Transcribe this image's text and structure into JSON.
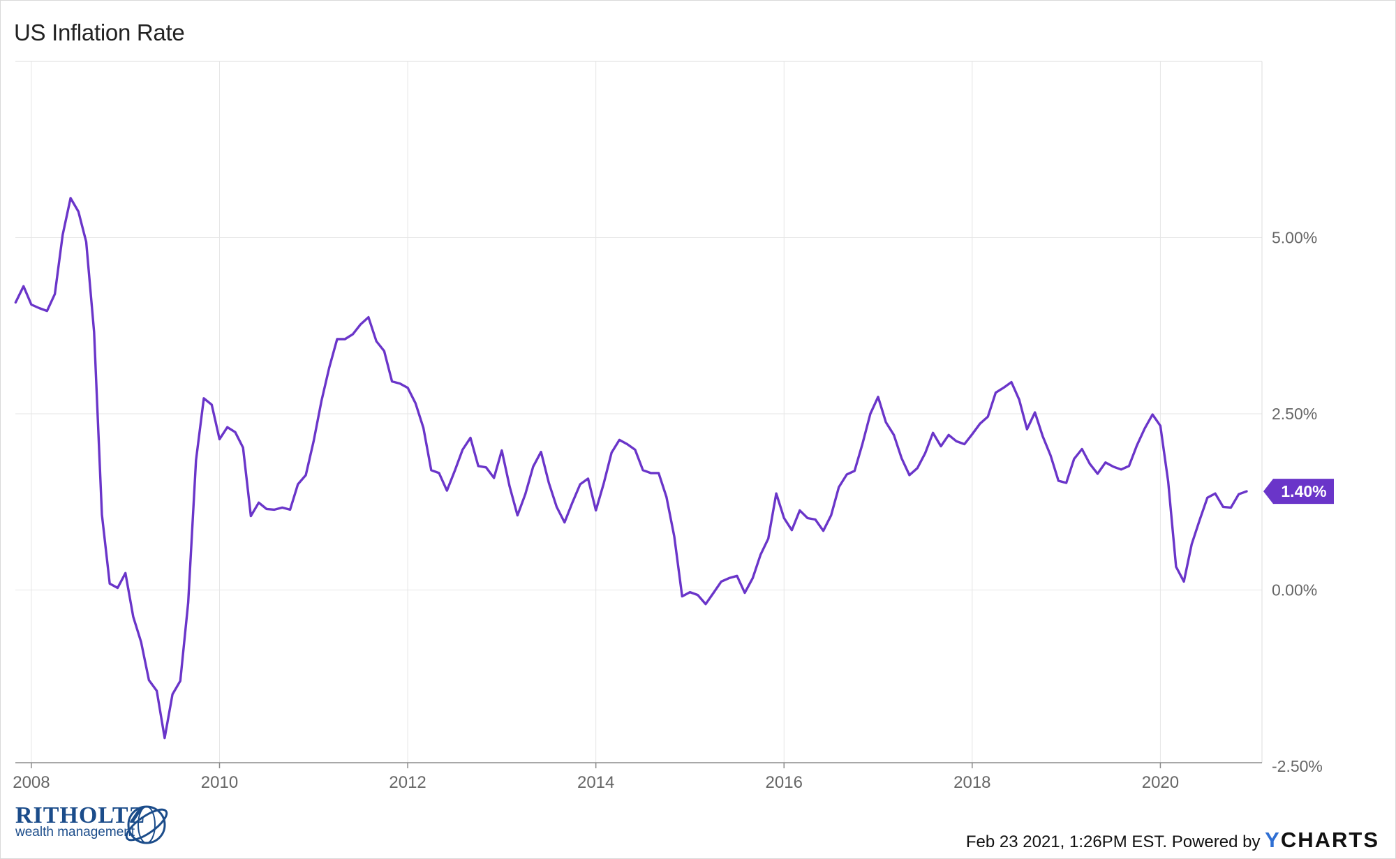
{
  "chart_data": {
    "type": "line",
    "title": "US Inflation Rate",
    "xlabel": "",
    "ylabel": "",
    "xlim": [
      2007.83,
      2021.08
    ],
    "ylim": [
      -2.45,
      7.5
    ],
    "x_ticks": [
      2008,
      2010,
      2012,
      2014,
      2016,
      2018,
      2020
    ],
    "x_tick_labels": [
      "2008",
      "2010",
      "2012",
      "2014",
      "2016",
      "2018",
      "2020"
    ],
    "y_ticks": [
      5.0,
      2.5,
      0.0,
      -2.5
    ],
    "y_tick_labels": [
      "5.00%",
      "2.50%",
      "0.00%",
      "-2.50%"
    ],
    "grid": true,
    "last_value_label": "1.40%",
    "colors": {
      "line": "#6a35c9",
      "grid": "#e6e6e6",
      "tick_text": "#666666",
      "axis": "#8c8c8c"
    },
    "series": [
      {
        "values": [
          [
            2007.833,
            4.08
          ],
          [
            2007.917,
            4.31
          ],
          [
            2008.0,
            4.05
          ],
          [
            2008.083,
            4.0
          ],
          [
            2008.167,
            3.96
          ],
          [
            2008.25,
            4.2
          ],
          [
            2008.333,
            5.04
          ],
          [
            2008.417,
            5.56
          ],
          [
            2008.5,
            5.37
          ],
          [
            2008.583,
            4.94
          ],
          [
            2008.667,
            3.66
          ],
          [
            2008.75,
            1.07
          ],
          [
            2008.833,
            0.09
          ],
          [
            2008.917,
            0.03
          ],
          [
            2009.0,
            0.24
          ],
          [
            2009.083,
            -0.38
          ],
          [
            2009.167,
            -0.74
          ],
          [
            2009.25,
            -1.28
          ],
          [
            2009.333,
            -1.43
          ],
          [
            2009.417,
            -2.1
          ],
          [
            2009.5,
            -1.48
          ],
          [
            2009.583,
            -1.29
          ],
          [
            2009.667,
            -0.18
          ],
          [
            2009.75,
            1.84
          ],
          [
            2009.833,
            2.72
          ],
          [
            2009.917,
            2.63
          ],
          [
            2010.0,
            2.14
          ],
          [
            2010.083,
            2.31
          ],
          [
            2010.167,
            2.24
          ],
          [
            2010.25,
            2.02
          ],
          [
            2010.333,
            1.05
          ],
          [
            2010.417,
            1.24
          ],
          [
            2010.5,
            1.15
          ],
          [
            2010.583,
            1.14
          ],
          [
            2010.667,
            1.17
          ],
          [
            2010.75,
            1.14
          ],
          [
            2010.833,
            1.5
          ],
          [
            2010.917,
            1.63
          ],
          [
            2011.0,
            2.11
          ],
          [
            2011.083,
            2.68
          ],
          [
            2011.167,
            3.16
          ],
          [
            2011.25,
            3.56
          ],
          [
            2011.333,
            3.56
          ],
          [
            2011.417,
            3.63
          ],
          [
            2011.5,
            3.77
          ],
          [
            2011.583,
            3.87
          ],
          [
            2011.667,
            3.53
          ],
          [
            2011.75,
            3.39
          ],
          [
            2011.833,
            2.96
          ],
          [
            2011.917,
            2.93
          ],
          [
            2012.0,
            2.87
          ],
          [
            2012.083,
            2.65
          ],
          [
            2012.167,
            2.3
          ],
          [
            2012.25,
            1.7
          ],
          [
            2012.333,
            1.66
          ],
          [
            2012.417,
            1.41
          ],
          [
            2012.5,
            1.69
          ],
          [
            2012.583,
            1.99
          ],
          [
            2012.667,
            2.16
          ],
          [
            2012.75,
            1.76
          ],
          [
            2012.833,
            1.74
          ],
          [
            2012.917,
            1.59
          ],
          [
            2013.0,
            1.98
          ],
          [
            2013.083,
            1.47
          ],
          [
            2013.167,
            1.06
          ],
          [
            2013.25,
            1.36
          ],
          [
            2013.333,
            1.75
          ],
          [
            2013.417,
            1.96
          ],
          [
            2013.5,
            1.52
          ],
          [
            2013.583,
            1.18
          ],
          [
            2013.667,
            0.96
          ],
          [
            2013.75,
            1.24
          ],
          [
            2013.833,
            1.5
          ],
          [
            2013.917,
            1.58
          ],
          [
            2014.0,
            1.13
          ],
          [
            2014.083,
            1.51
          ],
          [
            2014.167,
            1.95
          ],
          [
            2014.25,
            2.13
          ],
          [
            2014.333,
            2.07
          ],
          [
            2014.417,
            1.99
          ],
          [
            2014.5,
            1.7
          ],
          [
            2014.583,
            1.66
          ],
          [
            2014.667,
            1.66
          ],
          [
            2014.75,
            1.32
          ],
          [
            2014.833,
            0.76
          ],
          [
            2014.917,
            -0.09
          ],
          [
            2015.0,
            -0.03
          ],
          [
            2015.083,
            -0.07
          ],
          [
            2015.167,
            -0.2
          ],
          [
            2015.25,
            -0.04
          ],
          [
            2015.333,
            0.12
          ],
          [
            2015.417,
            0.17
          ],
          [
            2015.5,
            0.2
          ],
          [
            2015.583,
            -0.04
          ],
          [
            2015.667,
            0.17
          ],
          [
            2015.75,
            0.5
          ],
          [
            2015.833,
            0.73
          ],
          [
            2015.917,
            1.37
          ],
          [
            2016.0,
            1.02
          ],
          [
            2016.083,
            0.85
          ],
          [
            2016.167,
            1.13
          ],
          [
            2016.25,
            1.02
          ],
          [
            2016.333,
            1.0
          ],
          [
            2016.417,
            0.84
          ],
          [
            2016.5,
            1.06
          ],
          [
            2016.583,
            1.46
          ],
          [
            2016.667,
            1.64
          ],
          [
            2016.75,
            1.69
          ],
          [
            2016.833,
            2.07
          ],
          [
            2016.917,
            2.5
          ],
          [
            2017.0,
            2.74
          ],
          [
            2017.083,
            2.38
          ],
          [
            2017.167,
            2.2
          ],
          [
            2017.25,
            1.87
          ],
          [
            2017.333,
            1.63
          ],
          [
            2017.417,
            1.73
          ],
          [
            2017.5,
            1.94
          ],
          [
            2017.583,
            2.23
          ],
          [
            2017.667,
            2.04
          ],
          [
            2017.75,
            2.2
          ],
          [
            2017.833,
            2.11
          ],
          [
            2017.917,
            2.07
          ],
          [
            2018.0,
            2.21
          ],
          [
            2018.083,
            2.36
          ],
          [
            2018.167,
            2.46
          ],
          [
            2018.25,
            2.8
          ],
          [
            2018.333,
            2.87
          ],
          [
            2018.417,
            2.95
          ],
          [
            2018.5,
            2.7
          ],
          [
            2018.583,
            2.28
          ],
          [
            2018.667,
            2.52
          ],
          [
            2018.75,
            2.18
          ],
          [
            2018.833,
            1.91
          ],
          [
            2018.917,
            1.55
          ],
          [
            2019.0,
            1.52
          ],
          [
            2019.083,
            1.86
          ],
          [
            2019.167,
            2.0
          ],
          [
            2019.25,
            1.79
          ],
          [
            2019.333,
            1.65
          ],
          [
            2019.417,
            1.81
          ],
          [
            2019.5,
            1.75
          ],
          [
            2019.583,
            1.71
          ],
          [
            2019.667,
            1.76
          ],
          [
            2019.75,
            2.05
          ],
          [
            2019.833,
            2.29
          ],
          [
            2019.917,
            2.49
          ],
          [
            2020.0,
            2.33
          ],
          [
            2020.083,
            1.54
          ],
          [
            2020.167,
            0.33
          ],
          [
            2020.25,
            0.12
          ],
          [
            2020.333,
            0.65
          ],
          [
            2020.417,
            0.99
          ],
          [
            2020.5,
            1.31
          ],
          [
            2020.583,
            1.37
          ],
          [
            2020.667,
            1.18
          ],
          [
            2020.75,
            1.17
          ],
          [
            2020.833,
            1.36
          ],
          [
            2020.917,
            1.4
          ]
        ]
      }
    ]
  },
  "footer": {
    "brand_name": "RITHOLTZ",
    "brand_sub": "wealth management",
    "timestamp": "Feb 23 2021, 1:26PM EST.",
    "powered_by": "Powered by",
    "ycharts_y": "Y",
    "ycharts_rest": "CHARTS"
  }
}
